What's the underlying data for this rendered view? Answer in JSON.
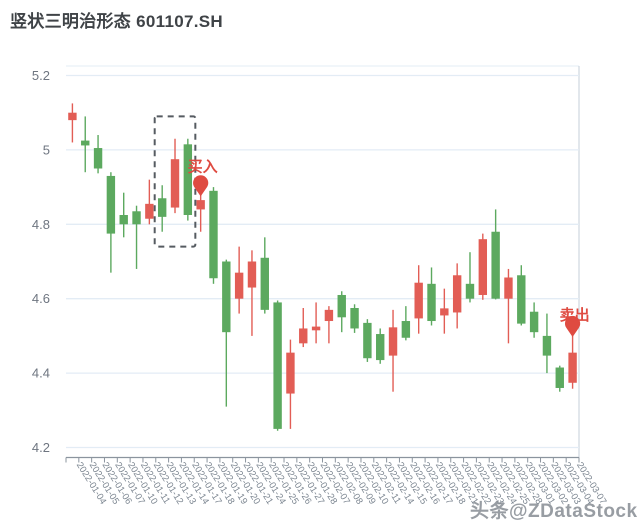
{
  "page": {
    "title": "竖状三明治形态 601107.SH",
    "watermark": "头条@ZDataStock"
  },
  "colors": {
    "up": "#e25d55",
    "down": "#5ca95f",
    "grid": "#e3ecf5",
    "right_border": "#c5cfd9",
    "axis": "#8b949e",
    "tick_label": "#6e7580",
    "x_label": "#7b8590",
    "annotation": "#df4b41",
    "pattern_box": "#565b61",
    "title": "#3f4347"
  },
  "chart_data": {
    "type": "candlestick",
    "title": "竖状三明治形态 601107.SH",
    "xlabel": "",
    "ylabel": "",
    "ylim": [
      4.2,
      5.2
    ],
    "yticks": [
      5.2,
      5.0,
      4.8,
      4.6,
      4.4,
      4.2
    ],
    "ytick_labels": [
      "5.2",
      "5",
      "4.8",
      "4.6",
      "4.4",
      "4.2"
    ],
    "grid": true,
    "legend_position": "none",
    "columns": [
      "open",
      "close",
      "high",
      "low"
    ],
    "dates": [
      "2022-01-04",
      "2022-01-05",
      "2022-01-06",
      "2022-01-07",
      "2022-01-10",
      "2022-01-11",
      "2022-01-12",
      "2022-01-13",
      "2022-01-14",
      "2022-01-17",
      "2022-01-18",
      "2022-01-19",
      "2022-01-20",
      "2022-01-21",
      "2022-01-24",
      "2022-01-25",
      "2022-01-26",
      "2022-01-27",
      "2022-01-28",
      "2022-02-07",
      "2022-02-08",
      "2022-02-09",
      "2022-02-10",
      "2022-02-11",
      "2022-02-14",
      "2022-02-15",
      "2022-02-16",
      "2022-02-17",
      "2022-02-18",
      "2022-02-21",
      "2022-02-22",
      "2022-02-23",
      "2022-02-24",
      "2022-02-25",
      "2022-02-28",
      "2022-03-01",
      "2022-03-02",
      "2022-03-03",
      "2022-03-04",
      "2022-03-07"
    ],
    "candles": [
      [
        5.08,
        5.1,
        5.125,
        5.02
      ],
      [
        5.025,
        5.012,
        5.09,
        4.94
      ],
      [
        5.005,
        4.95,
        5.04,
        4.937
      ],
      [
        4.93,
        4.775,
        4.94,
        4.67
      ],
      [
        4.825,
        4.8,
        4.885,
        4.765
      ],
      [
        4.835,
        4.8,
        4.85,
        4.68
      ],
      [
        4.815,
        4.855,
        4.92,
        4.8
      ],
      [
        4.87,
        4.82,
        4.905,
        4.78
      ],
      [
        4.845,
        4.975,
        5.03,
        4.83
      ],
      [
        5.015,
        4.825,
        5.03,
        4.81
      ],
      [
        4.84,
        4.865,
        4.9,
        4.78
      ],
      [
        4.89,
        4.655,
        4.9,
        4.64
      ],
      [
        4.7,
        4.51,
        4.705,
        4.31
      ],
      [
        4.6,
        4.67,
        4.74,
        4.56
      ],
      [
        4.63,
        4.7,
        4.73,
        4.5
      ],
      [
        4.71,
        4.57,
        4.765,
        4.56
      ],
      [
        4.59,
        4.25,
        4.595,
        4.245
      ],
      [
        4.345,
        4.455,
        4.49,
        4.25
      ],
      [
        4.48,
        4.52,
        4.575,
        4.47
      ],
      [
        4.515,
        4.525,
        4.59,
        4.48
      ],
      [
        4.54,
        4.57,
        4.58,
        4.48
      ],
      [
        4.61,
        4.55,
        4.62,
        4.51
      ],
      [
        4.575,
        4.52,
        4.585,
        4.508
      ],
      [
        4.535,
        4.44,
        4.545,
        4.43
      ],
      [
        4.505,
        4.435,
        4.52,
        4.425
      ],
      [
        4.447,
        4.523,
        4.57,
        4.35
      ],
      [
        4.54,
        4.495,
        4.58,
        4.488
      ],
      [
        4.547,
        4.643,
        4.69,
        4.506
      ],
      [
        4.64,
        4.54,
        4.684,
        4.528
      ],
      [
        4.555,
        4.574,
        4.627,
        4.506
      ],
      [
        4.563,
        4.663,
        4.695,
        4.52
      ],
      [
        4.64,
        4.6,
        4.725,
        4.59
      ],
      [
        4.61,
        4.76,
        4.775,
        4.597
      ],
      [
        4.78,
        4.6,
        4.84,
        4.598
      ],
      [
        4.6,
        4.657,
        4.68,
        4.48
      ],
      [
        4.663,
        4.533,
        4.69,
        4.528
      ],
      [
        4.565,
        4.51,
        4.59,
        4.495
      ],
      [
        4.5,
        4.447,
        4.56,
        4.4
      ],
      [
        4.415,
        4.36,
        4.42,
        4.35
      ],
      [
        4.374,
        4.455,
        4.5,
        4.358
      ]
    ]
  },
  "annotations": {
    "buy": {
      "label": "买入",
      "index": 10,
      "pin_price": 4.875,
      "label_gap": 15
    },
    "sell": {
      "label": "卖出",
      "index": 39,
      "pin_price": 4.497,
      "label_gap": 7
    },
    "pattern_box": {
      "from_index": 7,
      "to_index": 9,
      "price_top": 5.09,
      "price_bottom": 4.74
    }
  }
}
